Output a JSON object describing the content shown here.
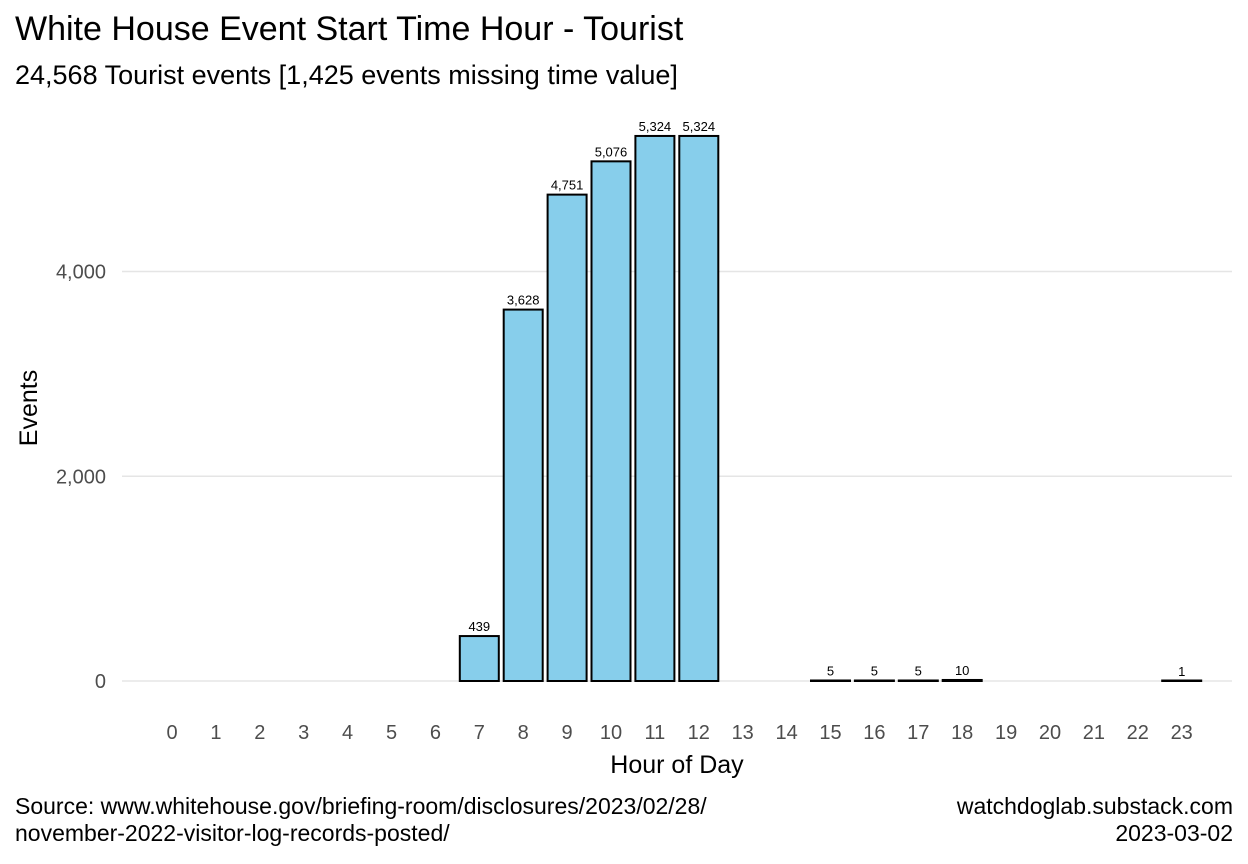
{
  "title": "White House Event Start Time Hour - Tourist",
  "subtitle": "24,568 Tourist events [1,425 events missing time value]",
  "caption": {
    "source_line1": "Source: www.whitehouse.gov/briefing-room/disclosures/2023/02/28/",
    "source_line2": "november-2022-visitor-log-records-posted/",
    "site": "watchdoglab.substack.com",
    "date": "2023-03-02"
  },
  "colors": {
    "bar_fill": "#87ceeb",
    "bar_stroke": "#000000",
    "grid": "#e5e5e5"
  },
  "chart_data": {
    "type": "bar",
    "title": "White House Event Start Time Hour - Tourist",
    "subtitle": "24,568 Tourist events [1,425 events missing time value]",
    "xlabel": "Hour of Day",
    "ylabel": "Events",
    "categories": [
      "0",
      "1",
      "2",
      "3",
      "4",
      "5",
      "6",
      "7",
      "8",
      "9",
      "10",
      "11",
      "12",
      "13",
      "14",
      "15",
      "16",
      "17",
      "18",
      "19",
      "20",
      "21",
      "22",
      "23"
    ],
    "values": [
      0,
      0,
      0,
      0,
      0,
      0,
      0,
      439,
      3628,
      4751,
      5076,
      5324,
      5324,
      0,
      0,
      5,
      5,
      5,
      10,
      0,
      0,
      0,
      0,
      1
    ],
    "data_labels": [
      "",
      "",
      "",
      "",
      "",
      "",
      "",
      "439",
      "3,628",
      "4,751",
      "5,076",
      "5,324",
      "5,324",
      "",
      "",
      "5",
      "5",
      "5",
      "10",
      "",
      "",
      "",
      "",
      "1"
    ],
    "y_ticks": [
      0,
      2000,
      4000
    ],
    "y_tick_labels": [
      "0",
      "2,000",
      "4,000"
    ],
    "ylim": [
      0,
      5600
    ],
    "grid": true,
    "legend": "none"
  }
}
